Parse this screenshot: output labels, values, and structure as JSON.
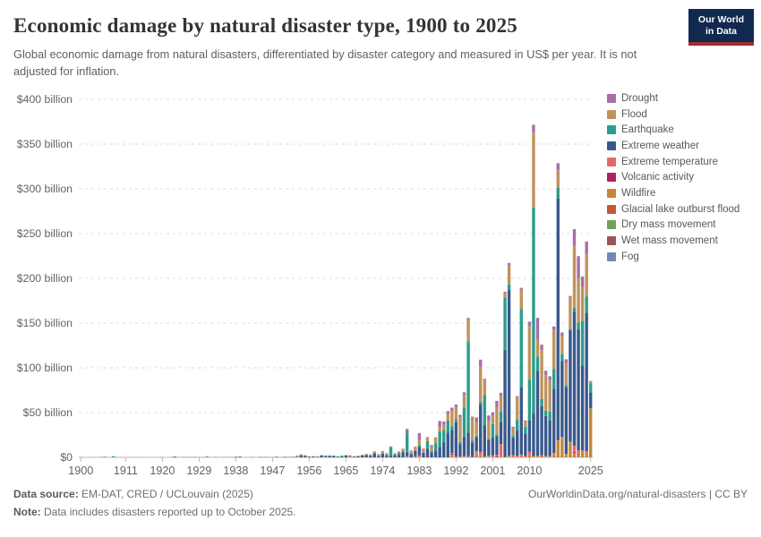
{
  "header": {
    "title": "Economic damage by natural disaster type, 1900 to 2025",
    "subtitle": "Global economic damage from natural disasters, differentiated by disaster category and measured in US$ per year. It is not adjusted for inflation.",
    "logo_line1": "Our World",
    "logo_line2": "in Data",
    "logo_bg": "#12294f",
    "logo_accent": "#9e2f34"
  },
  "footer": {
    "source_label": "Data source:",
    "source_text": " EM-DAT, CRED / UCLouvain (2025)",
    "note_label": "Note:",
    "note_text": " Data includes disasters reported up to October 2025.",
    "link_text": "OurWorldinData.org/natural-disasters | CC BY"
  },
  "chart_data": {
    "type": "bar",
    "stacked": true,
    "unit": "US$ billion (current, not inflation adjusted)",
    "x_range": [
      1900,
      2025
    ],
    "ylim": [
      0,
      400
    ],
    "grid": "dashed horizontal",
    "legend_position": "right",
    "x_ticks": [
      1900,
      1911,
      1920,
      1929,
      1938,
      1947,
      1956,
      1965,
      1974,
      1983,
      1992,
      2001,
      2010,
      2025
    ],
    "y_ticks": [
      {
        "value": 0,
        "label": "$0"
      },
      {
        "value": 50,
        "label": "$50 billion"
      },
      {
        "value": 100,
        "label": "$100 billion"
      },
      {
        "value": 150,
        "label": "$150 billion"
      },
      {
        "value": 200,
        "label": "$200 billion"
      },
      {
        "value": 250,
        "label": "$250 billion"
      },
      {
        "value": 300,
        "label": "$300 billion"
      },
      {
        "value": 350,
        "label": "$350 billion"
      },
      {
        "value": 400,
        "label": "$400 billion"
      }
    ],
    "legend": [
      {
        "key": "dr",
        "label": "Drought",
        "color": "#a96dab"
      },
      {
        "key": "fl",
        "label": "Flood",
        "color": "#bf935e"
      },
      {
        "key": "eq",
        "label": "Earthquake",
        "color": "#2c9d8a"
      },
      {
        "key": "ew",
        "label": "Extreme weather",
        "color": "#38598c"
      },
      {
        "key": "te",
        "label": "Extreme temperature",
        "color": "#e4686a"
      },
      {
        "key": "vo",
        "label": "Volcanic activity",
        "color": "#ad2166"
      },
      {
        "key": "wf",
        "label": "Wildfire",
        "color": "#c58637"
      },
      {
        "key": "gl",
        "label": "Glacial lake outburst flood",
        "color": "#c25a35"
      },
      {
        "key": "dm",
        "label": "Dry mass movement",
        "color": "#74a05c"
      },
      {
        "key": "wm",
        "label": "Wet mass movement",
        "color": "#9e5458"
      },
      {
        "key": "fo",
        "label": "Fog",
        "color": "#7289b8"
      }
    ],
    "stack_order_bottom_to_top": [
      "fo",
      "wm",
      "dm",
      "gl",
      "wf",
      "vo",
      "te",
      "ew",
      "eq",
      "fl",
      "dr"
    ],
    "values_by_year": {
      "1900": {
        "ew": 0.1
      },
      "1902": {
        "vo": 0.1
      },
      "1903": {
        "fl": 0.1
      },
      "1905": {
        "fl": 0.6
      },
      "1906": {
        "eq": 0.6
      },
      "1908": {
        "eq": 1.2
      },
      "1909": {
        "fl": 0.2
      },
      "1910": {
        "fl": 0.3
      },
      "1911": {
        "fl": 0.2
      },
      "1912": {
        "ew": 0.1
      },
      "1913": {
        "fl": 0.2
      },
      "1915": {
        "eq": 0.2
      },
      "1917": {
        "eq": 0.1
      },
      "1919": {
        "ew": 0.1
      },
      "1920": {
        "eq": 0.2
      },
      "1922": {
        "ew": 0.1
      },
      "1923": {
        "eq": 1.0
      },
      "1924": {
        "fl": 0.1
      },
      "1925": {
        "ew": 0.2
      },
      "1926": {
        "ew": 0.3
      },
      "1927": {
        "fl": 0.4
      },
      "1928": {
        "ew": 0.3
      },
      "1930": {
        "eq": 0.1
      },
      "1931": {
        "fl": 1.4
      },
      "1933": {
        "eq": 0.2,
        "ew": 0.1
      },
      "1934": {
        "fl": 0.1
      },
      "1935": {
        "eq": 0.2,
        "ew": 0.1
      },
      "1936": {
        "ew": 0.1
      },
      "1937": {
        "fl": 0.4
      },
      "1938": {
        "ew": 0.6
      },
      "1939": {
        "eq": 1.0
      },
      "1942": {
        "ew": 0.2
      },
      "1943": {
        "eq": 0.1
      },
      "1944": {
        "ew": 0.4
      },
      "1945": {
        "ew": 0.3
      },
      "1946": {
        "eq": 0.3
      },
      "1947": {
        "fl": 0.3
      },
      "1948": {
        "fl": 0.9,
        "eq": 0.2
      },
      "1949": {
        "fl": 0.3
      },
      "1950": {
        "fl": 0.9
      },
      "1951": {
        "fl": 0.7
      },
      "1952": {
        "ew": 0.4,
        "eq": 0.2
      },
      "1953": {
        "fl": 2.0
      },
      "1954": {
        "ew": 2.2,
        "fl": 1.3
      },
      "1955": {
        "ew": 1.8,
        "fl": 0.6
      },
      "1956": {
        "ew": 0.8,
        "fl": 0.3
      },
      "1957": {
        "ew": 0.8,
        "te": 0.4
      },
      "1958": {
        "ew": 0.6,
        "fl": 0.3
      },
      "1959": {
        "ew": 2.0,
        "fl": 0.5
      },
      "1960": {
        "eq": 1.6,
        "ew": 0.4
      },
      "1961": {
        "ew": 1.8,
        "fl": 0.3
      },
      "1962": {
        "ew": 1.5,
        "fl": 0.5
      },
      "1963": {
        "ew": 0.8,
        "eq": 0.3
      },
      "1964": {
        "eq": 1.3,
        "ew": 0.6
      },
      "1965": {
        "ew": 2.2,
        "fl": 0.4
      },
      "1966": {
        "fl": 2.0,
        "ew": 0.4
      },
      "1967": {
        "fl": 0.9,
        "ew": 0.5
      },
      "1968": {
        "ew": 0.9,
        "fl": 0.7,
        "eq": 0.3
      },
      "1969": {
        "ew": 2.3,
        "fl": 0.5
      },
      "1970": {
        "ew": 2.6,
        "fl": 0.9,
        "eq": 0.3
      },
      "1971": {
        "ew": 1.4,
        "eq": 0.7,
        "fl": 1.2
      },
      "1972": {
        "ew": 4.3,
        "fl": 1.6,
        "eq": 0.8
      },
      "1973": {
        "fl": 1.9,
        "ew": 1.4,
        "dr": 0.4
      },
      "1974": {
        "ew": 4.2,
        "fl": 2.4,
        "eq": 0.4
      },
      "1975": {
        "ew": 1.9,
        "eq": 1.4,
        "fl": 1.4
      },
      "1976": {
        "eq": 9.5,
        "ew": 1.9,
        "fl": 0.9
      },
      "1977": {
        "ew": 2.4,
        "fl": 1.4,
        "eq": 0.9
      },
      "1978": {
        "ew": 2.9,
        "eq": 2.0,
        "fl": 1.8
      },
      "1979": {
        "ew": 5.8,
        "fl": 2.8,
        "eq": 1.1
      },
      "1980": {
        "eq": 22.0,
        "ew": 3.8,
        "dr": 4.8,
        "te": 1.2
      },
      "1981": {
        "ew": 3.9,
        "fl": 2.8,
        "dr": 0.9
      },
      "1982": {
        "ew": 5.9,
        "fl": 4.6,
        "te": 1.1,
        "vo": 0.4
      },
      "1983": {
        "ew": 9.7,
        "dr": 7.8,
        "fl": 5.8,
        "eq": 2.1,
        "te": 0.9,
        "wf": 0.9
      },
      "1984": {
        "ew": 5.1,
        "fl": 3.9,
        "dr": 0.8
      },
      "1985": {
        "ew": 8.8,
        "eq": 7.7,
        "fl": 5.2,
        "vo": 1.0
      },
      "1986": {
        "ew": 5.2,
        "fl": 3.9,
        "eq": 2.1,
        "dr": 2.6
      },
      "1987": {
        "eq": 7.9,
        "ew": 7.8,
        "fl": 6.8
      },
      "1988": {
        "eq": 16.7,
        "ew": 11.8,
        "dr": 6.9,
        "fl": 5.3
      },
      "1989": {
        "ew": 16.9,
        "eq": 13.1,
        "fl": 6.2,
        "dr": 3.9
      },
      "1990": {
        "ew": 27.6,
        "eq": 13.8,
        "fl": 7.1,
        "dr": 3.2
      },
      "1991": {
        "ew": 25.7,
        "fl": 17.6,
        "eq": 4.2,
        "wf": 2.9,
        "dr": 3.1,
        "vo": 1.1,
        "te": 0.9
      },
      "1992": {
        "ew": 37.8,
        "fl": 13.7,
        "eq": 3.1,
        "dr": 2.8,
        "te": 1.1,
        "vo": 0.4
      },
      "1993": {
        "fl": 27.8,
        "ew": 13.9,
        "eq": 2.3,
        "dr": 2.7,
        "te": 0.9
      },
      "1994": {
        "eq": 32.6,
        "ew": 21.8,
        "fl": 13.9,
        "dr": 3.1,
        "te": 0.6,
        "wf": 0.7
      },
      "1995": {
        "eq": 101.9,
        "ew": 26.3,
        "fl": 24.1,
        "dr": 1.9,
        "te": 1.1,
        "wf": 0.4
      },
      "1996": {
        "fl": 25.6,
        "ew": 16.2,
        "eq": 1.9,
        "dr": 1.4,
        "te": 0.4
      },
      "1997": {
        "fl": 14.6,
        "ew": 15.3,
        "dr": 5.8,
        "wf": 4.9,
        "te": 1.9,
        "eq": 1.8,
        "vo": 0.3
      },
      "1998": {
        "ew": 53.6,
        "fl": 39.8,
        "dr": 7.9,
        "te": 3.9,
        "eq": 1.8,
        "wf": 1.9,
        "wm": 0.3
      },
      "1999": {
        "eq": 33.6,
        "ew": 34.8,
        "fl": 16.9,
        "te": 1.1,
        "dr": 1.4
      },
      "2000": {
        "fl": 19.8,
        "ew": 17.9,
        "dr": 6.1,
        "eq": 1.1,
        "te": 1.0,
        "wf": 0.9
      },
      "2001": {
        "ew": 19.8,
        "eq": 14.9,
        "fl": 9.8,
        "dr": 3.4,
        "te": 1.9,
        "wf": 0.6
      },
      "2002": {
        "fl": 29.6,
        "ew": 21.2,
        "dr": 7.8,
        "eq": 1.9,
        "te": 1.7,
        "vo": 0.9
      },
      "2003": {
        "ew": 24.8,
        "fl": 17.9,
        "te": 13.1,
        "eq": 11.6,
        "dr": 2.9,
        "wf": 1.8
      },
      "2004": {
        "ew": 119.8,
        "eq": 57.8,
        "fl": 5.9,
        "dr": 1.1,
        "te": 0.4
      },
      "2005": {
        "ew": 184.9,
        "fl": 21.8,
        "eq": 6.3,
        "dr": 2.1,
        "te": 1.1,
        "wf": 0.9
      },
      "2006": {
        "ew": 19.8,
        "fl": 7.9,
        "te": 2.3,
        "eq": 2.1,
        "dr": 1.9,
        "dm": 0.1
      },
      "2007": {
        "ew": 27.9,
        "fl": 25.8,
        "eq": 11.9,
        "te": 1.1,
        "dr": 0.9,
        "wf": 0.9
      },
      "2008": {
        "eq": 87.5,
        "ew": 74.9,
        "fl": 21.8,
        "dr": 2.1,
        "te": 2.0,
        "wf": 1.1
      },
      "2009": {
        "ew": 24.9,
        "eq": 7.8,
        "fl": 5.9,
        "dr": 1.1,
        "te": 0.9,
        "wf": 0.6
      },
      "2010": {
        "fl": 59.8,
        "eq": 45.9,
        "ew": 34.8,
        "dr": 4.9,
        "te": 3.9,
        "wf": 1.9,
        "wm": 0.4
      },
      "2011": {
        "eq": 229.8,
        "fl": 84.6,
        "ew": 47.8,
        "dr": 7.9,
        "te": 0.6,
        "wf": 0.9
      },
      "2012": {
        "ew": 94.8,
        "dr": 24.6,
        "fl": 18.7,
        "eq": 15.8,
        "te": 1.1,
        "wf": 0.9
      },
      "2013": {
        "ew": 54.8,
        "fl": 54.6,
        "eq": 7.9,
        "dr": 6.1,
        "te": 1.1,
        "wf": 0.9,
        "gl": 0.5
      },
      "2014": {
        "ew": 44.8,
        "fl": 39.8,
        "eq": 5.9,
        "dr": 4.9,
        "te": 0.6,
        "wf": 0.5,
        "wm": 0.3
      },
      "2015": {
        "ew": 39.8,
        "fl": 34.6,
        "eq": 9.8,
        "dr": 4.9,
        "te": 0.9,
        "wf": 0.6
      },
      "2016": {
        "ew": 71.8,
        "fl": 43.8,
        "eq": 21.9,
        "dr": 3.9,
        "wf": 3.9,
        "te": 0.9
      },
      "2017": {
        "ew": 269.8,
        "fl": 19.8,
        "wf": 17.9,
        "eq": 11.9,
        "dr": 7.9,
        "te": 1.1,
        "wm": 0.3
      },
      "2018": {
        "ew": 84.8,
        "wf": 21.9,
        "fl": 19.8,
        "eq": 7.9,
        "dr": 4.1,
        "te": 1.1
      },
      "2019": {
        "ew": 74.8,
        "fl": 24.8,
        "dr": 4.1,
        "wf": 2.9,
        "eq": 1.9,
        "te": 1.1
      },
      "2020": {
        "ew": 124.8,
        "fl": 34.8,
        "wf": 16.9,
        "dr": 2.1,
        "eq": 1.1,
        "te": 0.6
      },
      "2021": {
        "ew": 149.8,
        "fl": 69.8,
        "dr": 17.9,
        "te": 6.9,
        "wf": 4.9,
        "eq": 4.6,
        "vo": 0.9,
        "gl": 0.2
      },
      "2022": {
        "ew": 134.8,
        "fl": 49.8,
        "dr": 24.6,
        "eq": 7.9,
        "te": 3.9,
        "wf": 2.9,
        "vo": 0.9
      },
      "2023": {
        "ew": 94.8,
        "eq": 49.8,
        "fl": 37.8,
        "dr": 11.9,
        "wf": 5.9,
        "te": 1.9
      },
      "2024": {
        "ew": 154.8,
        "fl": 47.8,
        "eq": 17.9,
        "dr": 13.9,
        "wf": 3.9,
        "te": 2.9
      },
      "2025": {
        "wf": 54.8,
        "ew": 17.9,
        "eq": 9.8,
        "fl": 2.9
      }
    }
  }
}
